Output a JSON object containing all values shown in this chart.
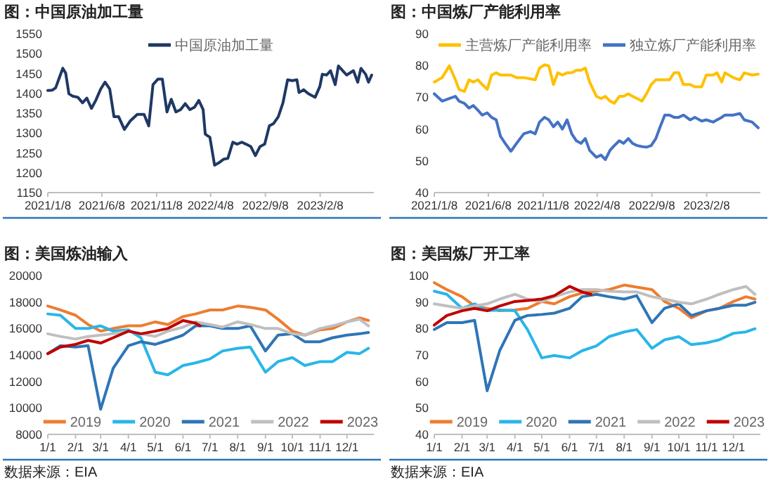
{
  "chart_data": [
    {
      "type": "line",
      "title": "图：中国原油加工量",
      "legend": "top",
      "xlim": [
        "2021-01-08",
        "2023-07-08"
      ],
      "xticks": [
        {
          "value": "2021-01-08",
          "label": "2021/1/8"
        },
        {
          "value": "2021-06-08",
          "label": "2021/6/8"
        },
        {
          "value": "2021-11-08",
          "label": "2021/11/8"
        },
        {
          "value": "2022-04-08",
          "label": "2022/4/8"
        },
        {
          "value": "2022-09-08",
          "label": "2022/9/8"
        },
        {
          "value": "2023-02-08",
          "label": "2023/2/8"
        }
      ],
      "ylim": [
        1150,
        1550
      ],
      "yticks": [
        1150,
        1200,
        1250,
        1300,
        1350,
        1400,
        1450,
        1500,
        1550
      ],
      "x": [
        "2021-01-08",
        "2021-01-21",
        "2021-01-30",
        "2021-02-12",
        "2021-02-19",
        "2021-02-27",
        "2021-03-08",
        "2021-03-18",
        "2021-04-02",
        "2021-04-15",
        "2021-04-27",
        "2021-05-10",
        "2021-05-22",
        "2021-06-05",
        "2021-06-17",
        "2021-06-30",
        "2021-07-12",
        "2021-07-25",
        "2021-08-10",
        "2021-08-26",
        "2021-09-15",
        "2021-10-04",
        "2021-10-17",
        "2021-10-29",
        "2021-11-12",
        "2021-11-24",
        "2021-12-07",
        "2021-12-19",
        "2022-01-01",
        "2022-01-14",
        "2022-01-27",
        "2022-02-09",
        "2022-02-22",
        "2022-03-06",
        "2022-03-18",
        "2022-03-24",
        "2022-04-06",
        "2022-04-19",
        "2022-05-01",
        "2022-05-14",
        "2022-05-26",
        "2022-06-09",
        "2022-06-21",
        "2022-07-04",
        "2022-07-16",
        "2022-07-29",
        "2022-08-11",
        "2022-08-24",
        "2022-09-06",
        "2022-09-19",
        "2022-10-01",
        "2022-10-14",
        "2022-10-27",
        "2022-11-09",
        "2022-11-22",
        "2022-12-05",
        "2022-12-11",
        "2022-12-24",
        "2023-01-06",
        "2023-01-25",
        "2023-02-07",
        "2023-02-14",
        "2023-02-26",
        "2023-03-09",
        "2023-03-22",
        "2023-03-31",
        "2023-04-12",
        "2023-04-23",
        "2023-05-12",
        "2023-05-24",
        "2023-06-02",
        "2023-06-15",
        "2023-06-23",
        "2023-07-02"
      ],
      "series": [
        {
          "name": "中国原油加工量",
          "color": "#1f3864",
          "values": [
            1407,
            1408,
            1414,
            1446,
            1463,
            1451,
            1399,
            1393,
            1390,
            1376,
            1388,
            1362,
            1382,
            1411,
            1428,
            1411,
            1341,
            1341,
            1309,
            1330,
            1347,
            1347,
            1318,
            1422,
            1436,
            1436,
            1353,
            1385,
            1353,
            1359,
            1374,
            1359,
            1365,
            1382,
            1359,
            1297,
            1289,
            1219,
            1225,
            1234,
            1236,
            1277,
            1272,
            1277,
            1272,
            1266,
            1243,
            1266,
            1272,
            1318,
            1324,
            1341,
            1376,
            1434,
            1432,
            1434,
            1402,
            1409,
            1399,
            1390,
            1417,
            1448,
            1446,
            1457,
            1422,
            1469,
            1457,
            1446,
            1457,
            1428,
            1463,
            1448,
            1428,
            1446
          ]
        }
      ]
    },
    {
      "type": "line",
      "title": "图：中国炼厂产能利用率",
      "legend": "top",
      "xlim": [
        "2021-01-08",
        "2023-07-08"
      ],
      "xticks": [
        {
          "value": "2021-01-08",
          "label": "2021/1/8"
        },
        {
          "value": "2021-06-08",
          "label": "2021/6/8"
        },
        {
          "value": "2021-11-08",
          "label": "2021/11/8"
        },
        {
          "value": "2022-04-08",
          "label": "2022/4/8"
        },
        {
          "value": "2022-09-08",
          "label": "2022/9/8"
        },
        {
          "value": "2023-02-08",
          "label": "2023/2/8"
        }
      ],
      "ylim": [
        40,
        90
      ],
      "yticks": [
        40,
        50,
        60,
        70,
        80,
        90
      ],
      "x": [
        "2021-01-08",
        "2021-01-30",
        "2021-02-19",
        "2021-03-08",
        "2021-03-18",
        "2021-04-02",
        "2021-04-15",
        "2021-04-27",
        "2021-05-10",
        "2021-05-22",
        "2021-06-05",
        "2021-06-17",
        "2021-06-30",
        "2021-07-12",
        "2021-07-25",
        "2021-08-10",
        "2021-08-26",
        "2021-09-15",
        "2021-10-04",
        "2021-10-17",
        "2021-10-29",
        "2021-11-12",
        "2021-11-24",
        "2021-12-07",
        "2021-12-19",
        "2022-01-01",
        "2022-01-14",
        "2022-01-27",
        "2022-02-09",
        "2022-02-22",
        "2022-03-06",
        "2022-03-18",
        "2022-04-06",
        "2022-04-19",
        "2022-05-01",
        "2022-05-14",
        "2022-05-26",
        "2022-06-09",
        "2022-06-21",
        "2022-07-04",
        "2022-07-16",
        "2022-07-29",
        "2022-08-11",
        "2022-08-24",
        "2022-09-06",
        "2022-09-19",
        "2022-10-01",
        "2022-10-14",
        "2022-10-27",
        "2022-11-09",
        "2022-11-22",
        "2022-12-05",
        "2022-12-24",
        "2023-01-06",
        "2023-01-25",
        "2023-02-07",
        "2023-02-26",
        "2023-03-09",
        "2023-03-22",
        "2023-03-31",
        "2023-04-23",
        "2023-05-12",
        "2023-05-24",
        "2023-06-15",
        "2023-07-02"
      ],
      "series": [
        {
          "name": "主营炼厂产能利用率",
          "color": "#ffc000",
          "values": [
            74.8,
            76.2,
            79.9,
            75.5,
            72.5,
            71.8,
            75.5,
            74.8,
            75.5,
            74.0,
            72.5,
            77.0,
            77.7,
            77.0,
            77.0,
            77.0,
            76.2,
            76.2,
            75.8,
            75.5,
            79.2,
            80.2,
            79.9,
            74.0,
            77.7,
            77.0,
            77.7,
            77.7,
            78.5,
            78.5,
            79.2,
            74.8,
            70.3,
            69.6,
            70.3,
            68.8,
            68.1,
            70.3,
            70.3,
            71.1,
            70.3,
            69.6,
            68.8,
            71.1,
            74.0,
            75.5,
            75.5,
            75.5,
            75.5,
            77.7,
            77.7,
            74.0,
            74.0,
            73.3,
            73.3,
            77.0,
            77.0,
            77.7,
            74.8,
            77.7,
            76.2,
            75.5,
            77.7,
            77.0,
            77.3
          ]
        },
        {
          "name": "独立炼厂产能利用率",
          "color": "#4472c4",
          "values": [
            71.1,
            68.8,
            69.6,
            70.3,
            68.8,
            68.1,
            66.6,
            67.4,
            65.9,
            64.4,
            65.1,
            63.7,
            62.9,
            57.7,
            55.5,
            53.0,
            55.5,
            58.5,
            59.2,
            58.5,
            62.2,
            63.7,
            62.9,
            60.7,
            62.2,
            60.0,
            62.9,
            58.5,
            56.3,
            55.5,
            57.0,
            53.3,
            51.1,
            51.8,
            50.4,
            53.3,
            54.8,
            56.3,
            55.5,
            57.0,
            55.5,
            54.8,
            54.5,
            54.3,
            54.8,
            57.0,
            60.7,
            64.4,
            64.4,
            63.7,
            63.7,
            64.4,
            62.9,
            63.7,
            62.5,
            62.9,
            62.2,
            62.9,
            63.7,
            64.4,
            64.4,
            64.9,
            62.9,
            62.2,
            60.4
          ]
        }
      ]
    },
    {
      "type": "line",
      "title": "图：美国炼油输入",
      "legend": "bottom",
      "annotations": [
        "数据来源：EIA"
      ],
      "xlim": [
        "--01-01",
        "--12-31"
      ],
      "xticks": [
        {
          "value": "--01-01",
          "label": "1/1"
        },
        {
          "value": "--02-01",
          "label": "2/1"
        },
        {
          "value": "--03-01",
          "label": "3/1"
        },
        {
          "value": "--04-01",
          "label": "4/1"
        },
        {
          "value": "--05-01",
          "label": "5/1"
        },
        {
          "value": "--06-01",
          "label": "6/1"
        },
        {
          "value": "--07-01",
          "label": "7/1"
        },
        {
          "value": "--08-01",
          "label": "8/1"
        },
        {
          "value": "--09-01",
          "label": "9/1"
        },
        {
          "value": "--10-01",
          "label": "10/1"
        },
        {
          "value": "--11-01",
          "label": "11/1"
        },
        {
          "value": "--12-01",
          "label": "12/1"
        }
      ],
      "ylim": [
        8000,
        20000
      ],
      "yticks": [
        8000,
        10000,
        12000,
        14000,
        16000,
        18000,
        20000
      ],
      "x": [
        "--01-01",
        "--01-15",
        "--02-01",
        "--02-15",
        "--03-01",
        "--03-15",
        "--04-01",
        "--04-15",
        "--05-01",
        "--05-15",
        "--06-01",
        "--06-15",
        "--07-01",
        "--07-15",
        "--08-01",
        "--08-15",
        "--09-01",
        "--09-15",
        "--10-01",
        "--10-15",
        "--11-01",
        "--11-15",
        "--12-01",
        "--12-15",
        "--12-25"
      ],
      "series": [
        {
          "name": "2019",
          "color": "#ed7d31",
          "values": [
            17700,
            17400,
            17000,
            16300,
            15800,
            16000,
            16200,
            16200,
            16500,
            16300,
            16900,
            17100,
            17400,
            17400,
            17700,
            17600,
            17400,
            16700,
            15800,
            15500,
            15900,
            16000,
            16500,
            16800,
            16600
          ]
        },
        {
          "name": "2020",
          "color": "#29b6e8",
          "values": [
            17100,
            17000,
            16000,
            16000,
            16200,
            15800,
            15900,
            15300,
            12700,
            12500,
            13200,
            13400,
            13700,
            14300,
            14500,
            14600,
            12700,
            13500,
            13800,
            13200,
            13500,
            13500,
            14200,
            14100,
            14500
          ]
        },
        {
          "name": "2021",
          "color": "#2e75b6",
          "values": [
            14100,
            14700,
            14600,
            14700,
            9900,
            13000,
            14700,
            15000,
            14800,
            15100,
            15500,
            16200,
            16200,
            16000,
            16000,
            16200,
            14300,
            15500,
            15600,
            15000,
            15000,
            15300,
            15500,
            15600,
            15700
          ]
        },
        {
          "name": "2022",
          "color": "#bfbfbf",
          "values": [
            15600,
            15400,
            15200,
            15400,
            15500,
            15600,
            15800,
            15600,
            15400,
            15800,
            16100,
            16500,
            16300,
            16100,
            16500,
            16300,
            16000,
            16000,
            15600,
            15500,
            16000,
            16200,
            16500,
            16700,
            16200
          ]
        },
        {
          "name": "2023",
          "color": "#c00000",
          "x": [
            "--01-01",
            "--01-15",
            "--02-01",
            "--02-15",
            "--03-01",
            "--03-15",
            "--04-01",
            "--04-15",
            "--05-01",
            "--05-15",
            "--06-01",
            "--06-15",
            "--06-20"
          ],
          "values": [
            14100,
            14600,
            14800,
            15100,
            14900,
            15300,
            15800,
            15600,
            15800,
            16000,
            16600,
            16400,
            16200
          ]
        }
      ]
    },
    {
      "type": "line",
      "title": "图：美国炼厂开工率",
      "legend": "bottom",
      "annotations": [
        "数据来源：EIA"
      ],
      "xlim": [
        "--01-01",
        "--12-31"
      ],
      "xticks": [
        {
          "value": "--01-01",
          "label": "1/1"
        },
        {
          "value": "--02-01",
          "label": "2/1"
        },
        {
          "value": "--03-01",
          "label": "3/1"
        },
        {
          "value": "--04-01",
          "label": "4/1"
        },
        {
          "value": "--05-01",
          "label": "5/1"
        },
        {
          "value": "--06-01",
          "label": "6/1"
        },
        {
          "value": "--07-01",
          "label": "7/1"
        },
        {
          "value": "--08-01",
          "label": "8/1"
        },
        {
          "value": "--09-01",
          "label": "9/1"
        },
        {
          "value": "--10-01",
          "label": "10/1"
        },
        {
          "value": "--11-01",
          "label": "11/1"
        },
        {
          "value": "--12-01",
          "label": "12/1"
        }
      ],
      "ylim": [
        40,
        100
      ],
      "yticks": [
        40,
        50,
        60,
        70,
        80,
        90,
        100
      ],
      "x": [
        "--01-01",
        "--01-15",
        "--02-01",
        "--02-15",
        "--03-01",
        "--03-15",
        "--04-01",
        "--04-15",
        "--05-01",
        "--05-15",
        "--06-01",
        "--06-15",
        "--07-01",
        "--07-15",
        "--08-01",
        "--08-15",
        "--09-01",
        "--09-15",
        "--10-01",
        "--10-15",
        "--11-01",
        "--11-15",
        "--12-01",
        "--12-15",
        "--12-25"
      ],
      "series": [
        {
          "name": "2019",
          "color": "#ed7d31",
          "values": [
            97.3,
            94.7,
            92.0,
            88.5,
            87.6,
            86.7,
            87.0,
            87.6,
            90.2,
            89.3,
            92.0,
            93.4,
            94.1,
            94.7,
            96.4,
            95.6,
            94.7,
            90.2,
            87.6,
            84.0,
            86.7,
            87.6,
            90.2,
            92.0,
            91.1
          ]
        },
        {
          "name": "2020",
          "color": "#29b6e8",
          "values": [
            94.1,
            92.9,
            87.6,
            89.3,
            86.7,
            87.0,
            86.7,
            79.6,
            68.9,
            69.8,
            68.9,
            71.6,
            73.4,
            76.9,
            78.7,
            79.6,
            72.5,
            75.7,
            76.9,
            73.9,
            74.6,
            75.7,
            78.2,
            78.7,
            79.9
          ]
        },
        {
          "name": "2021",
          "color": "#2e75b6",
          "values": [
            79.6,
            82.2,
            82.2,
            83.1,
            56.5,
            71.6,
            83.1,
            84.9,
            85.3,
            85.8,
            87.6,
            92.0,
            92.9,
            92.0,
            91.1,
            92.4,
            82.2,
            87.6,
            89.3,
            84.9,
            86.7,
            87.6,
            88.8,
            88.8,
            89.9
          ]
        },
        {
          "name": "2022",
          "color": "#bfbfbf",
          "values": [
            89.3,
            88.5,
            87.6,
            88.5,
            89.3,
            91.1,
            92.9,
            91.1,
            90.2,
            92.0,
            93.8,
            94.7,
            94.7,
            94.1,
            93.8,
            93.8,
            92.0,
            91.1,
            89.9,
            89.3,
            91.1,
            92.9,
            94.7,
            95.9,
            92.9
          ]
        },
        {
          "name": "2023",
          "color": "#c00000",
          "x": [
            "--01-01",
            "--01-15",
            "--02-01",
            "--02-15",
            "--03-01",
            "--03-15",
            "--04-01",
            "--04-15",
            "--05-01",
            "--05-15",
            "--06-01",
            "--06-15",
            "--06-25"
          ],
          "values": [
            81.3,
            84.9,
            86.7,
            87.6,
            86.7,
            88.5,
            90.2,
            90.6,
            91.1,
            92.4,
            95.9,
            93.8,
            92.9
          ]
        }
      ]
    }
  ]
}
